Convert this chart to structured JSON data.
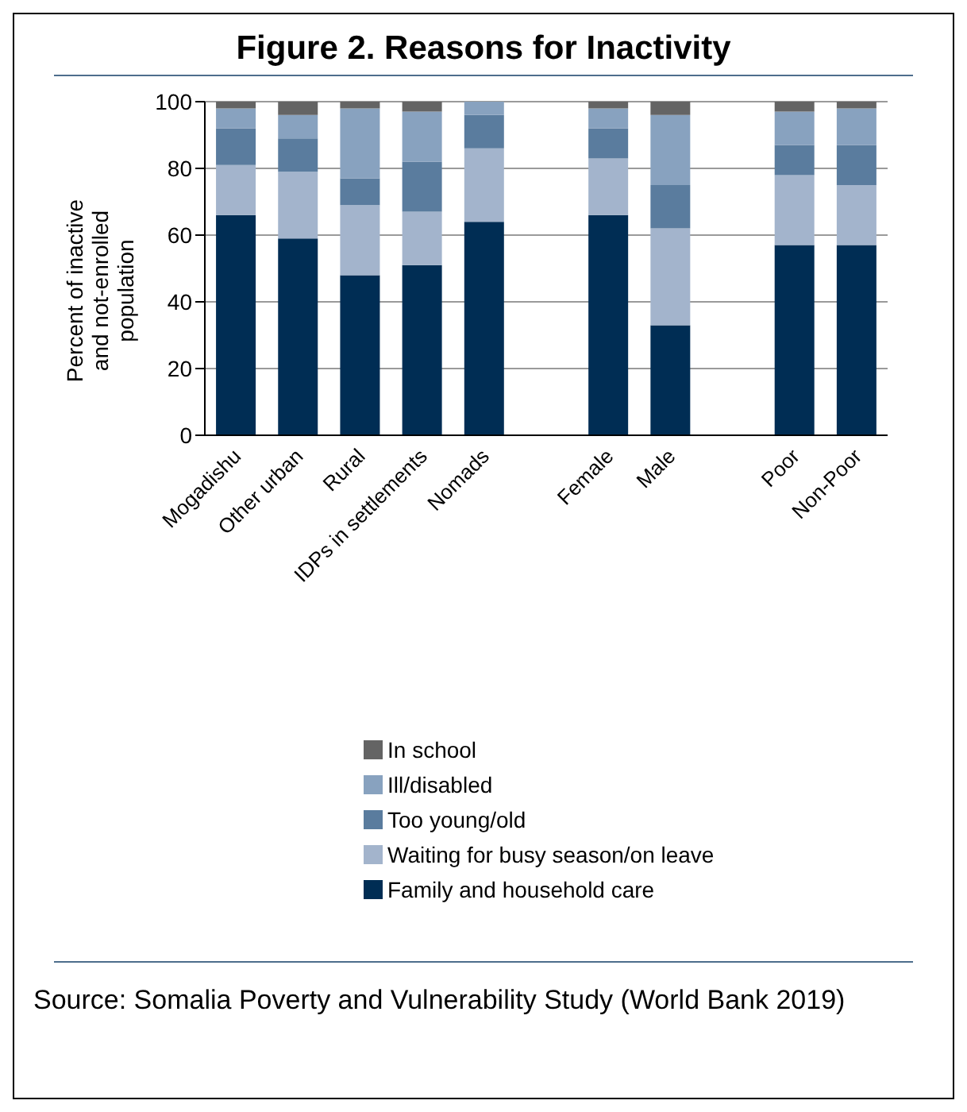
{
  "chart_data": {
    "type": "bar",
    "title": "Figure 2. Reasons for Inactivity",
    "ylabel": "Percent of inactive and not-enrolled population",
    "categories": [
      "Mogadishu",
      "Other urban",
      "Rural",
      "IDPs in settlements",
      "Nomads",
      null,
      "Female",
      "Male",
      null,
      "Poor",
      "Non-Poor"
    ],
    "stacked": true,
    "series": [
      {
        "name": "Family and household care",
        "color": "#002d54",
        "values": [
          66,
          59,
          48,
          51,
          64,
          null,
          66,
          33,
          null,
          57,
          57
        ]
      },
      {
        "name": "Waiting for busy season/on leave",
        "color": "#a3b4cc",
        "values": [
          15,
          20,
          21,
          16,
          22,
          null,
          17,
          29,
          null,
          21,
          18
        ]
      },
      {
        "name": "Too young/old",
        "color": "#5a7c9e",
        "values": [
          11,
          10,
          8,
          15,
          10,
          null,
          9,
          13,
          null,
          9,
          12
        ]
      },
      {
        "name": "Ill/disabled",
        "color": "#88a2bf",
        "values": [
          6,
          7,
          21,
          15,
          4,
          null,
          6,
          21,
          null,
          10,
          11
        ]
      },
      {
        "name": "In school",
        "color": "#646464",
        "values": [
          2,
          4,
          2,
          3,
          0,
          null,
          2,
          4,
          null,
          3,
          2
        ]
      }
    ],
    "ylim": [
      0,
      100
    ],
    "yticks": [
      0,
      20,
      40,
      60,
      80,
      100
    ],
    "grid": "y",
    "legend": "bottom",
    "annotations": [
      "Source: Somalia Poverty and Vulnerability Study (World Bank 2019)"
    ]
  }
}
